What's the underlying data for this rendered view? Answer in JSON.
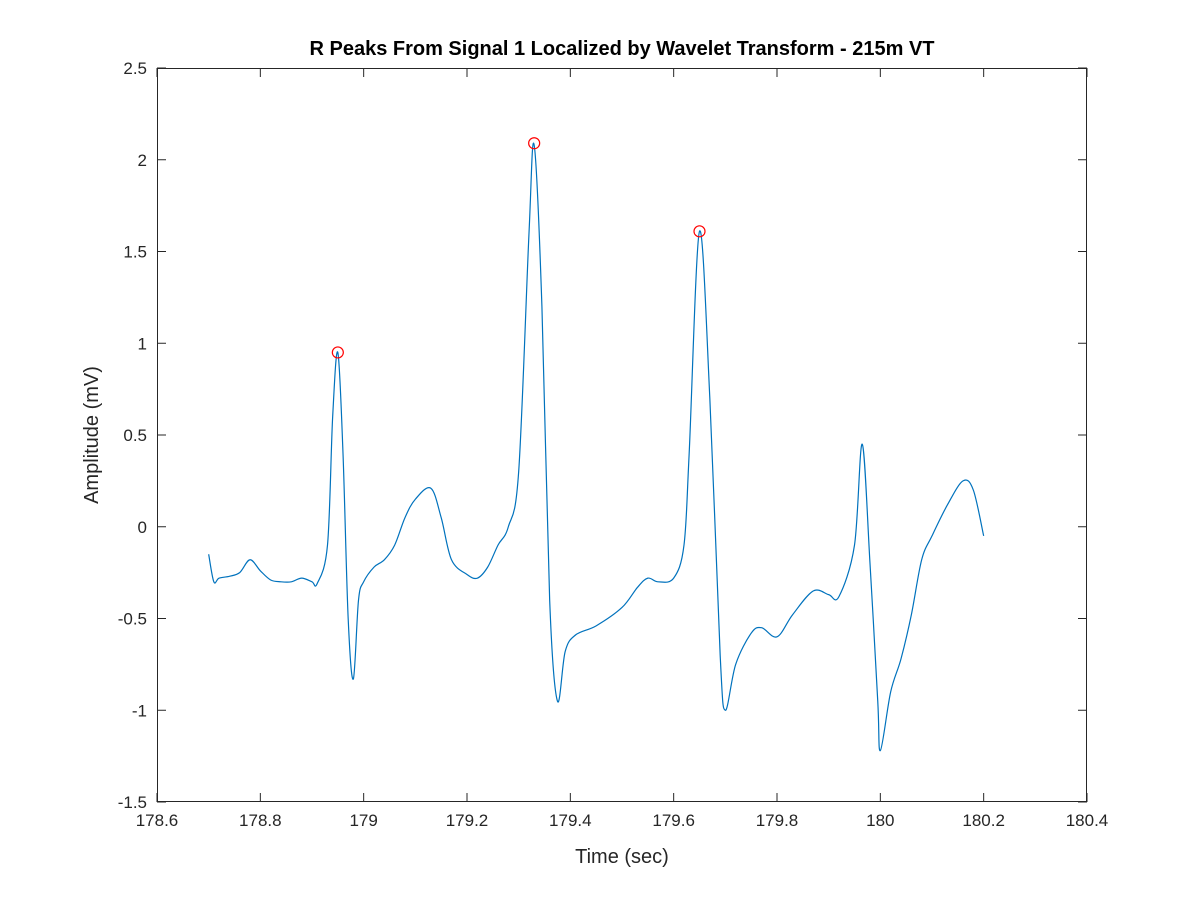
{
  "chart_data": {
    "type": "line",
    "title": "R Peaks From Signal 1 Localized by Wavelet Transform - 215m VT",
    "xlabel": "Time (sec)",
    "ylabel": "Amplitude (mV)",
    "xlim": [
      178.6,
      180.4
    ],
    "ylim": [
      -1.5,
      2.5
    ],
    "xticks": [
      178.6,
      178.8,
      179,
      179.2,
      179.4,
      179.6,
      179.8,
      180,
      180.2,
      180.4
    ],
    "xtick_labels": [
      "178.6",
      "178.8",
      "179",
      "179.2",
      "179.4",
      "179.6",
      "179.8",
      "180",
      "180.2",
      "180.4"
    ],
    "yticks": [
      -1.5,
      -1,
      -0.5,
      0,
      0.5,
      1,
      1.5,
      2,
      2.5
    ],
    "ytick_labels": [
      "-1.5",
      "-1",
      "-0.5",
      "0",
      "0.5",
      "1",
      "1.5",
      "2",
      "2.5"
    ],
    "grid": false,
    "box": true,
    "series": [
      {
        "kind": "line",
        "color": "#0072bd",
        "x": [
          178.7,
          178.71,
          178.72,
          178.74,
          178.76,
          178.78,
          178.8,
          178.82,
          178.84,
          178.86,
          178.88,
          178.9,
          178.91,
          178.93,
          178.94,
          178.95,
          178.96,
          178.97,
          178.98,
          178.99,
          179.0,
          179.02,
          179.04,
          179.06,
          179.08,
          179.1,
          179.13,
          179.15,
          179.17,
          179.2,
          179.22,
          179.24,
          179.26,
          179.28,
          179.3,
          179.32,
          179.33,
          179.345,
          179.36,
          179.375,
          179.39,
          179.41,
          179.45,
          179.5,
          179.53,
          179.55,
          179.57,
          179.6,
          179.62,
          179.63,
          179.65,
          179.67,
          179.69,
          179.7,
          179.72,
          179.75,
          179.77,
          179.8,
          179.83,
          179.87,
          179.9,
          179.92,
          179.95,
          179.965,
          179.98,
          179.995,
          180.0,
          180.02,
          180.04,
          180.06,
          180.08,
          180.1,
          180.13,
          180.16,
          180.18,
          180.2
        ],
        "y": [
          -0.15,
          -0.3,
          -0.28,
          -0.27,
          -0.25,
          -0.18,
          -0.24,
          -0.29,
          -0.3,
          -0.3,
          -0.28,
          -0.3,
          -0.31,
          -0.1,
          0.6,
          0.95,
          0.4,
          -0.5,
          -0.83,
          -0.4,
          -0.3,
          -0.22,
          -0.18,
          -0.1,
          0.05,
          0.15,
          0.21,
          0.05,
          -0.18,
          -0.26,
          -0.28,
          -0.22,
          -0.1,
          0.0,
          0.3,
          1.6,
          2.08,
          1.2,
          -0.4,
          -0.95,
          -0.68,
          -0.59,
          -0.54,
          -0.44,
          -0.33,
          -0.28,
          -0.3,
          -0.28,
          -0.1,
          0.4,
          1.61,
          0.7,
          -0.7,
          -1.0,
          -0.75,
          -0.58,
          -0.55,
          -0.6,
          -0.48,
          -0.35,
          -0.37,
          -0.38,
          -0.1,
          0.45,
          -0.2,
          -0.95,
          -1.22,
          -0.9,
          -0.72,
          -0.48,
          -0.18,
          -0.05,
          0.12,
          0.25,
          0.2,
          -0.05
        ]
      },
      {
        "kind": "markers",
        "color": "#ff0000",
        "x": [
          178.95,
          179.33,
          179.65
        ],
        "y": [
          0.95,
          2.09,
          1.61
        ]
      }
    ]
  }
}
